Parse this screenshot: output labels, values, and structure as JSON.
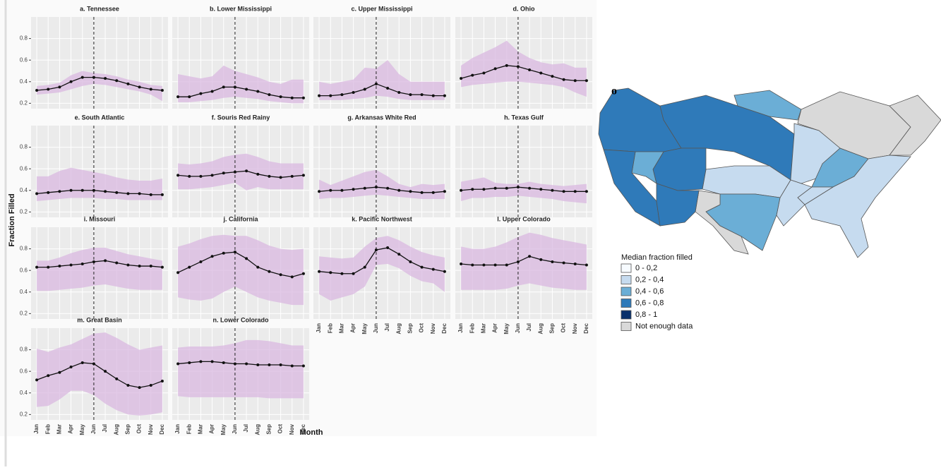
{
  "axis_labels": {
    "x": "Month",
    "y": "Fraction Filled"
  },
  "chart_data": [
    {
      "type": "line",
      "title": "a. Tennessee",
      "categories": [
        "Jan",
        "Feb",
        "Mar",
        "Apr",
        "May",
        "Jun",
        "Jul",
        "Aug",
        "Sep",
        "Oct",
        "Nov",
        "Dec"
      ],
      "vline": "Jun",
      "color": "#111111",
      "band_color": "#d9b8e0",
      "values": [
        0.32,
        0.33,
        0.35,
        0.4,
        0.44,
        0.44,
        0.43,
        0.41,
        0.38,
        0.35,
        0.33,
        0.32
      ],
      "band_lower": [
        0.28,
        0.29,
        0.3,
        0.33,
        0.36,
        0.38,
        0.37,
        0.35,
        0.33,
        0.31,
        0.28,
        0.22
      ],
      "band_upper": [
        0.36,
        0.37,
        0.39,
        0.46,
        0.5,
        0.48,
        0.47,
        0.45,
        0.42,
        0.4,
        0.37,
        0.36
      ],
      "ylim": [
        0.15,
        1.0
      ],
      "yticks": [
        0.2,
        0.4,
        0.6,
        0.8
      ],
      "grid": true
    },
    {
      "type": "line",
      "title": "b. Lower Mississippi",
      "categories": [
        "Jan",
        "Feb",
        "Mar",
        "Apr",
        "May",
        "Jun",
        "Jul",
        "Aug",
        "Sep",
        "Oct",
        "Nov",
        "Dec"
      ],
      "vline": "Jun",
      "color": "#111111",
      "band_color": "#d9b8e0",
      "values": [
        0.26,
        0.26,
        0.29,
        0.31,
        0.35,
        0.35,
        0.33,
        0.31,
        0.28,
        0.26,
        0.25,
        0.25
      ],
      "band_lower": [
        0.21,
        0.21,
        0.22,
        0.23,
        0.25,
        0.26,
        0.25,
        0.24,
        0.22,
        0.21,
        0.2,
        0.2
      ],
      "band_upper": [
        0.47,
        0.45,
        0.43,
        0.45,
        0.55,
        0.5,
        0.47,
        0.44,
        0.4,
        0.38,
        0.42,
        0.42
      ],
      "ylim": [
        0.15,
        1.0
      ],
      "yticks": [
        0.2,
        0.4,
        0.6,
        0.8
      ],
      "grid": true
    },
    {
      "type": "line",
      "title": "c. Upper Mississippi",
      "categories": [
        "Jan",
        "Feb",
        "Mar",
        "Apr",
        "May",
        "Jun",
        "Jul",
        "Aug",
        "Sep",
        "Oct",
        "Nov",
        "Dec"
      ],
      "vline": "Jun",
      "color": "#111111",
      "band_color": "#d9b8e0",
      "values": [
        0.27,
        0.27,
        0.28,
        0.3,
        0.33,
        0.38,
        0.34,
        0.3,
        0.28,
        0.28,
        0.27,
        0.27
      ],
      "band_lower": [
        0.23,
        0.23,
        0.23,
        0.24,
        0.25,
        0.27,
        0.26,
        0.24,
        0.23,
        0.23,
        0.23,
        0.23
      ],
      "band_upper": [
        0.4,
        0.38,
        0.4,
        0.42,
        0.53,
        0.52,
        0.6,
        0.47,
        0.4,
        0.4,
        0.4,
        0.4
      ],
      "ylim": [
        0.15,
        1.0
      ],
      "yticks": [
        0.2,
        0.4,
        0.6,
        0.8
      ],
      "grid": true
    },
    {
      "type": "line",
      "title": "d. Ohio",
      "categories": [
        "Jan",
        "Feb",
        "Mar",
        "Apr",
        "May",
        "Jun",
        "Jul",
        "Aug",
        "Sep",
        "Oct",
        "Nov",
        "Dec"
      ],
      "vline": "Jun",
      "color": "#111111",
      "band_color": "#d9b8e0",
      "values": [
        0.43,
        0.46,
        0.48,
        0.52,
        0.55,
        0.54,
        0.51,
        0.48,
        0.45,
        0.42,
        0.41,
        0.41
      ],
      "band_lower": [
        0.35,
        0.37,
        0.38,
        0.39,
        0.4,
        0.4,
        0.39,
        0.38,
        0.37,
        0.35,
        0.3,
        0.26
      ],
      "band_upper": [
        0.55,
        0.62,
        0.67,
        0.72,
        0.78,
        0.68,
        0.62,
        0.58,
        0.56,
        0.57,
        0.53,
        0.53
      ],
      "ylim": [
        0.15,
        1.0
      ],
      "yticks": [
        0.2,
        0.4,
        0.6,
        0.8
      ],
      "grid": true
    },
    {
      "type": "line",
      "title": "e. South Atlantic",
      "categories": [
        "Jan",
        "Feb",
        "Mar",
        "Apr",
        "May",
        "Jun",
        "Jul",
        "Aug",
        "Sep",
        "Oct",
        "Nov",
        "Dec"
      ],
      "vline": "Jun",
      "color": "#111111",
      "band_color": "#d9b8e0",
      "values": [
        0.37,
        0.38,
        0.39,
        0.4,
        0.4,
        0.4,
        0.39,
        0.38,
        0.37,
        0.37,
        0.36,
        0.36
      ],
      "band_lower": [
        0.3,
        0.31,
        0.32,
        0.33,
        0.33,
        0.33,
        0.32,
        0.32,
        0.31,
        0.31,
        0.31,
        0.31
      ],
      "band_upper": [
        0.53,
        0.53,
        0.58,
        0.61,
        0.59,
        0.57,
        0.55,
        0.52,
        0.5,
        0.49,
        0.49,
        0.51
      ],
      "ylim": [
        0.15,
        1.0
      ],
      "yticks": [
        0.2,
        0.4,
        0.6,
        0.8
      ],
      "grid": true
    },
    {
      "type": "line",
      "title": "f. Souris Red Rainy",
      "categories": [
        "Jan",
        "Feb",
        "Mar",
        "Apr",
        "May",
        "Jun",
        "Jul",
        "Aug",
        "Sep",
        "Oct",
        "Nov",
        "Dec"
      ],
      "vline": "Jun",
      "color": "#111111",
      "band_color": "#d9b8e0",
      "values": [
        0.54,
        0.53,
        0.53,
        0.54,
        0.56,
        0.57,
        0.58,
        0.55,
        0.53,
        0.52,
        0.53,
        0.54
      ],
      "band_lower": [
        0.41,
        0.41,
        0.42,
        0.43,
        0.45,
        0.47,
        0.4,
        0.43,
        0.41,
        0.41,
        0.41,
        0.41
      ],
      "band_upper": [
        0.65,
        0.64,
        0.65,
        0.67,
        0.71,
        0.73,
        0.74,
        0.71,
        0.67,
        0.65,
        0.65,
        0.65
      ],
      "ylim": [
        0.15,
        1.0
      ],
      "yticks": [
        0.2,
        0.4,
        0.6,
        0.8
      ],
      "grid": true
    },
    {
      "type": "line",
      "title": "g. Arkansas White Red",
      "categories": [
        "Jan",
        "Feb",
        "Mar",
        "Apr",
        "May",
        "Jun",
        "Jul",
        "Aug",
        "Sep",
        "Oct",
        "Nov",
        "Dec"
      ],
      "vline": "Jun",
      "color": "#111111",
      "band_color": "#d9b8e0",
      "values": [
        0.39,
        0.4,
        0.4,
        0.41,
        0.42,
        0.43,
        0.42,
        0.4,
        0.39,
        0.38,
        0.38,
        0.39
      ],
      "band_lower": [
        0.32,
        0.33,
        0.33,
        0.34,
        0.35,
        0.36,
        0.35,
        0.34,
        0.33,
        0.32,
        0.32,
        0.32
      ],
      "band_upper": [
        0.5,
        0.45,
        0.49,
        0.53,
        0.57,
        0.59,
        0.53,
        0.46,
        0.43,
        0.46,
        0.45,
        0.46
      ],
      "ylim": [
        0.15,
        1.0
      ],
      "yticks": [
        0.2,
        0.4,
        0.6,
        0.8
      ],
      "grid": true
    },
    {
      "type": "line",
      "title": "h. Texas Gulf",
      "categories": [
        "Jan",
        "Feb",
        "Mar",
        "Apr",
        "May",
        "Jun",
        "Jul",
        "Aug",
        "Sep",
        "Oct",
        "Nov",
        "Dec"
      ],
      "vline": "Jun",
      "color": "#111111",
      "band_color": "#d9b8e0",
      "values": [
        0.4,
        0.41,
        0.41,
        0.42,
        0.42,
        0.43,
        0.42,
        0.41,
        0.4,
        0.39,
        0.39,
        0.39
      ],
      "band_lower": [
        0.3,
        0.33,
        0.33,
        0.34,
        0.34,
        0.35,
        0.34,
        0.33,
        0.32,
        0.3,
        0.29,
        0.28
      ],
      "band_upper": [
        0.48,
        0.5,
        0.52,
        0.47,
        0.46,
        0.46,
        0.48,
        0.46,
        0.45,
        0.44,
        0.45,
        0.46
      ],
      "ylim": [
        0.15,
        1.0
      ],
      "yticks": [
        0.2,
        0.4,
        0.6,
        0.8
      ],
      "grid": true
    },
    {
      "type": "line",
      "title": "i. Missouri",
      "categories": [
        "Jan",
        "Feb",
        "Mar",
        "Apr",
        "May",
        "Jun",
        "Jul",
        "Aug",
        "Sep",
        "Oct",
        "Nov",
        "Dec"
      ],
      "vline": "Jun",
      "color": "#111111",
      "band_color": "#d9b8e0",
      "values": [
        0.63,
        0.63,
        0.64,
        0.65,
        0.66,
        0.68,
        0.69,
        0.67,
        0.65,
        0.64,
        0.64,
        0.63
      ],
      "band_lower": [
        0.41,
        0.41,
        0.42,
        0.43,
        0.44,
        0.46,
        0.47,
        0.45,
        0.43,
        0.42,
        0.42,
        0.42
      ],
      "band_upper": [
        0.69,
        0.69,
        0.72,
        0.76,
        0.79,
        0.81,
        0.81,
        0.78,
        0.75,
        0.73,
        0.71,
        0.69
      ],
      "ylim": [
        0.15,
        1.0
      ],
      "yticks": [
        0.2,
        0.4,
        0.6,
        0.8
      ],
      "grid": true
    },
    {
      "type": "line",
      "title": "j. California",
      "categories": [
        "Jan",
        "Feb",
        "Mar",
        "Apr",
        "May",
        "Jun",
        "Jul",
        "Aug",
        "Sep",
        "Oct",
        "Nov",
        "Dec"
      ],
      "vline": "Jun",
      "color": "#111111",
      "band_color": "#d9b8e0",
      "values": [
        0.58,
        0.63,
        0.68,
        0.73,
        0.76,
        0.77,
        0.71,
        0.63,
        0.59,
        0.56,
        0.54,
        0.57
      ],
      "band_lower": [
        0.35,
        0.33,
        0.32,
        0.34,
        0.4,
        0.45,
        0.4,
        0.35,
        0.32,
        0.3,
        0.28,
        0.28
      ],
      "band_upper": [
        0.82,
        0.85,
        0.89,
        0.92,
        0.93,
        0.92,
        0.92,
        0.88,
        0.83,
        0.8,
        0.79,
        0.8
      ],
      "ylim": [
        0.15,
        1.0
      ],
      "yticks": [
        0.2,
        0.4,
        0.6,
        0.8
      ],
      "grid": true
    },
    {
      "type": "line",
      "title": "k. Pacific Northwest",
      "categories": [
        "Jan",
        "Feb",
        "Mar",
        "Apr",
        "May",
        "Jun",
        "Jul",
        "Aug",
        "Sep",
        "Oct",
        "Nov",
        "Dec"
      ],
      "vline": "Jun",
      "color": "#111111",
      "band_color": "#d9b8e0",
      "values": [
        0.59,
        0.58,
        0.57,
        0.57,
        0.63,
        0.79,
        0.81,
        0.75,
        0.68,
        0.63,
        0.61,
        0.59
      ],
      "band_lower": [
        0.38,
        0.32,
        0.35,
        0.38,
        0.45,
        0.65,
        0.66,
        0.62,
        0.55,
        0.5,
        0.48,
        0.4
      ],
      "band_upper": [
        0.73,
        0.72,
        0.71,
        0.72,
        0.82,
        0.9,
        0.92,
        0.88,
        0.82,
        0.77,
        0.74,
        0.72
      ],
      "ylim": [
        0.15,
        1.0
      ],
      "yticks": [
        0.2,
        0.4,
        0.6,
        0.8
      ],
      "grid": true
    },
    {
      "type": "line",
      "title": "l. Upper Colorado",
      "categories": [
        "Jan",
        "Feb",
        "Mar",
        "Apr",
        "May",
        "Jun",
        "Jul",
        "Aug",
        "Sep",
        "Oct",
        "Nov",
        "Dec"
      ],
      "vline": "Jun",
      "color": "#111111",
      "band_color": "#d9b8e0",
      "values": [
        0.66,
        0.65,
        0.65,
        0.65,
        0.65,
        0.68,
        0.73,
        0.7,
        0.68,
        0.67,
        0.66,
        0.65
      ],
      "band_lower": [
        0.42,
        0.42,
        0.42,
        0.42,
        0.43,
        0.46,
        0.48,
        0.46,
        0.44,
        0.43,
        0.42,
        0.42
      ],
      "band_upper": [
        0.82,
        0.8,
        0.8,
        0.82,
        0.86,
        0.91,
        0.95,
        0.93,
        0.9,
        0.88,
        0.86,
        0.84
      ],
      "ylim": [
        0.15,
        1.0
      ],
      "yticks": [
        0.2,
        0.4,
        0.6,
        0.8
      ],
      "grid": true
    },
    {
      "type": "line",
      "title": "m. Great Basin",
      "categories": [
        "Jan",
        "Feb",
        "Mar",
        "Apr",
        "May",
        "Jun",
        "Jul",
        "Aug",
        "Sep",
        "Oct",
        "Nov",
        "Dec"
      ],
      "vline": "Jun",
      "color": "#111111",
      "band_color": "#d9b8e0",
      "values": [
        0.52,
        0.56,
        0.59,
        0.64,
        0.68,
        0.67,
        0.6,
        0.53,
        0.47,
        0.45,
        0.47,
        0.51
      ],
      "band_lower": [
        0.27,
        0.28,
        0.34,
        0.42,
        0.42,
        0.38,
        0.3,
        0.24,
        0.2,
        0.19,
        0.2,
        0.22
      ],
      "band_upper": [
        0.81,
        0.78,
        0.82,
        0.85,
        0.9,
        0.95,
        0.96,
        0.91,
        0.85,
        0.8,
        0.82,
        0.84
      ],
      "ylim": [
        0.15,
        1.0
      ],
      "yticks": [
        0.2,
        0.4,
        0.6,
        0.8
      ],
      "grid": true
    },
    {
      "type": "line",
      "title": "n. Lower Colorado",
      "categories": [
        "Jan",
        "Feb",
        "Mar",
        "Apr",
        "May",
        "Jun",
        "Jul",
        "Aug",
        "Sep",
        "Oct",
        "Nov",
        "Dec"
      ],
      "vline": "Jun",
      "color": "#111111",
      "band_color": "#d9b8e0",
      "values": [
        0.67,
        0.68,
        0.69,
        0.69,
        0.68,
        0.67,
        0.67,
        0.66,
        0.66,
        0.66,
        0.65,
        0.65
      ],
      "band_lower": [
        0.37,
        0.36,
        0.36,
        0.36,
        0.36,
        0.36,
        0.36,
        0.36,
        0.35,
        0.35,
        0.35,
        0.35
      ],
      "band_upper": [
        0.82,
        0.83,
        0.83,
        0.83,
        0.84,
        0.86,
        0.89,
        0.89,
        0.88,
        0.86,
        0.84,
        0.84
      ],
      "ylim": [
        0.15,
        1.0
      ],
      "yticks": [
        0.2,
        0.4,
        0.6,
        0.8
      ],
      "grid": true
    }
  ],
  "map": {
    "label": "o",
    "legend_title": "Median fraction filled",
    "legend": [
      {
        "label": "0 - 0,2",
        "color": "#f7fbff"
      },
      {
        "label": "0,2 - 0,4",
        "color": "#c6dbef"
      },
      {
        "label": "0,4 - 0,6",
        "color": "#6baed6"
      },
      {
        "label": "0,6 - 0,8",
        "color": "#2f7ab9"
      },
      {
        "label": "0,8 - 1",
        "color": "#08306b"
      },
      {
        "label": "Not enough data",
        "color": "#d9d9d9"
      }
    ]
  }
}
